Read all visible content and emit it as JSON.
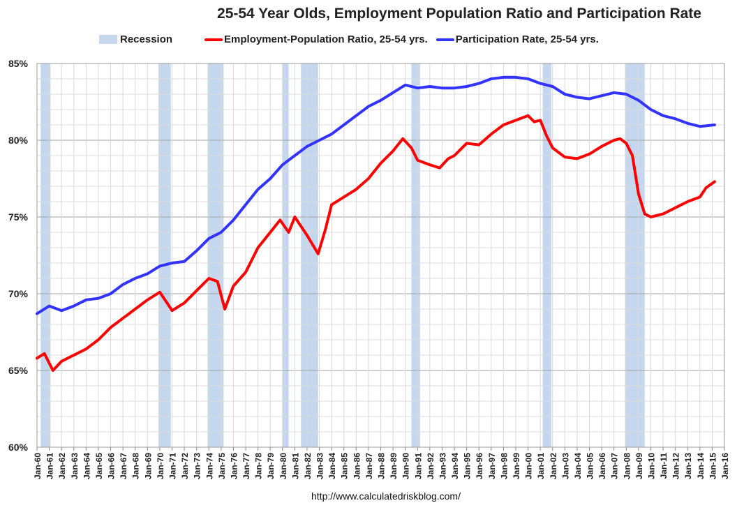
{
  "chart_data": {
    "type": "line",
    "title": "25-54 Year Olds, Employment Population Ratio and Participation Rate",
    "source": "http://www.calculatedriskblog.com/",
    "xlabel": "",
    "ylabel": "",
    "xlim": [
      1960,
      2016
    ],
    "ylim": [
      60,
      85
    ],
    "y_ticks": [
      "60%",
      "65%",
      "70%",
      "75%",
      "80%",
      "85%"
    ],
    "x_ticks": [
      "Jan-60",
      "Jan-61",
      "Jan-62",
      "Jan-63",
      "Jan-64",
      "Jan-65",
      "Jan-66",
      "Jan-67",
      "Jan-68",
      "Jan-69",
      "Jan-70",
      "Jan-71",
      "Jan-72",
      "Jan-73",
      "Jan-74",
      "Jan-75",
      "Jan-76",
      "Jan-77",
      "Jan-78",
      "Jan-79",
      "Jan-80",
      "Jan-81",
      "Jan-82",
      "Jan-83",
      "Jan-84",
      "Jan-85",
      "Jan-86",
      "Jan-87",
      "Jan-88",
      "Jan-89",
      "Jan-90",
      "Jan-91",
      "Jan-92",
      "Jan-93",
      "Jan-94",
      "Jan-95",
      "Jan-96",
      "Jan-97",
      "Jan-98",
      "Jan-99",
      "Jan-00",
      "Jan-01",
      "Jan-02",
      "Jan-03",
      "Jan-04",
      "Jan-05",
      "Jan-06",
      "Jan-07",
      "Jan-08",
      "Jan-09",
      "Jan-10",
      "Jan-11",
      "Jan-12",
      "Jan-13",
      "Jan-14",
      "Jan-15",
      "Jan-16"
    ],
    "grid": true,
    "legend_position": "top",
    "recession": {
      "name": "Recession",
      "color": "#c5d7ee",
      "periods": [
        [
          1960.3,
          1961.1
        ],
        [
          1969.9,
          1970.9
        ],
        [
          1973.9,
          1975.2
        ],
        [
          1980.0,
          1980.5
        ],
        [
          1981.5,
          1982.9
        ],
        [
          1990.5,
          1991.2
        ],
        [
          2001.2,
          2001.9
        ],
        [
          2007.9,
          2009.5
        ]
      ]
    },
    "series": [
      {
        "name": "Employment-Population Ratio, 25-54 yrs.",
        "color": "#ff0000",
        "points": [
          [
            1960,
            65.8
          ],
          [
            1960.6,
            66.1
          ],
          [
            1961.3,
            65.0
          ],
          [
            1962,
            65.6
          ],
          [
            1963,
            66.0
          ],
          [
            1964,
            66.4
          ],
          [
            1965,
            67.0
          ],
          [
            1966,
            67.8
          ],
          [
            1967,
            68.4
          ],
          [
            1968,
            69.0
          ],
          [
            1969,
            69.6
          ],
          [
            1970,
            70.1
          ],
          [
            1970.6,
            69.4
          ],
          [
            1971,
            68.9
          ],
          [
            1972,
            69.4
          ],
          [
            1973,
            70.2
          ],
          [
            1974,
            71.0
          ],
          [
            1974.7,
            70.8
          ],
          [
            1975.3,
            69.0
          ],
          [
            1976,
            70.5
          ],
          [
            1977,
            71.4
          ],
          [
            1978,
            73.0
          ],
          [
            1979,
            74.0
          ],
          [
            1979.8,
            74.8
          ],
          [
            1980.5,
            74.0
          ],
          [
            1981,
            75.0
          ],
          [
            1982,
            73.8
          ],
          [
            1982.9,
            72.6
          ],
          [
            1983.5,
            74.2
          ],
          [
            1984,
            75.8
          ],
          [
            1985,
            76.3
          ],
          [
            1986,
            76.8
          ],
          [
            1987,
            77.5
          ],
          [
            1988,
            78.5
          ],
          [
            1989,
            79.3
          ],
          [
            1989.8,
            80.1
          ],
          [
            1990.5,
            79.5
          ],
          [
            1991,
            78.7
          ],
          [
            1992,
            78.4
          ],
          [
            1992.8,
            78.2
          ],
          [
            1993.5,
            78.8
          ],
          [
            1994,
            79.0
          ],
          [
            1995,
            79.8
          ],
          [
            1996,
            79.7
          ],
          [
            1997,
            80.4
          ],
          [
            1998,
            81.0
          ],
          [
            1999,
            81.3
          ],
          [
            2000,
            81.6
          ],
          [
            2000.5,
            81.2
          ],
          [
            2001,
            81.3
          ],
          [
            2001.5,
            80.3
          ],
          [
            2002,
            79.5
          ],
          [
            2003,
            78.9
          ],
          [
            2004,
            78.8
          ],
          [
            2005,
            79.1
          ],
          [
            2006,
            79.6
          ],
          [
            2007,
            80.0
          ],
          [
            2007.5,
            80.1
          ],
          [
            2008,
            79.8
          ],
          [
            2008.5,
            79.0
          ],
          [
            2009,
            76.5
          ],
          [
            2009.5,
            75.2
          ],
          [
            2010,
            75.0
          ],
          [
            2011,
            75.2
          ],
          [
            2012,
            75.6
          ],
          [
            2013,
            76.0
          ],
          [
            2014,
            76.3
          ],
          [
            2014.5,
            76.9
          ],
          [
            2015.2,
            77.3
          ]
        ]
      },
      {
        "name": "Participation Rate, 25-54 yrs.",
        "color": "#3333ff",
        "points": [
          [
            1960,
            68.7
          ],
          [
            1961,
            69.2
          ],
          [
            1962,
            68.9
          ],
          [
            1963,
            69.2
          ],
          [
            1964,
            69.6
          ],
          [
            1965,
            69.7
          ],
          [
            1966,
            70.0
          ],
          [
            1967,
            70.6
          ],
          [
            1968,
            71.0
          ],
          [
            1969,
            71.3
          ],
          [
            1970,
            71.8
          ],
          [
            1971,
            72.0
          ],
          [
            1972,
            72.1
          ],
          [
            1973,
            72.8
          ],
          [
            1974,
            73.6
          ],
          [
            1975,
            74.0
          ],
          [
            1976,
            74.8
          ],
          [
            1977,
            75.8
          ],
          [
            1978,
            76.8
          ],
          [
            1979,
            77.5
          ],
          [
            1980,
            78.4
          ],
          [
            1981,
            79.0
          ],
          [
            1982,
            79.6
          ],
          [
            1983,
            80.0
          ],
          [
            1984,
            80.4
          ],
          [
            1985,
            81.0
          ],
          [
            1986,
            81.6
          ],
          [
            1987,
            82.2
          ],
          [
            1988,
            82.6
          ],
          [
            1989,
            83.1
          ],
          [
            1990,
            83.6
          ],
          [
            1991,
            83.4
          ],
          [
            1992,
            83.5
          ],
          [
            1993,
            83.4
          ],
          [
            1994,
            83.4
          ],
          [
            1995,
            83.5
          ],
          [
            1996,
            83.7
          ],
          [
            1997,
            84.0
          ],
          [
            1998,
            84.1
          ],
          [
            1999,
            84.1
          ],
          [
            2000,
            84.0
          ],
          [
            2001,
            83.7
          ],
          [
            2002,
            83.5
          ],
          [
            2003,
            83.0
          ],
          [
            2004,
            82.8
          ],
          [
            2005,
            82.7
          ],
          [
            2006,
            82.9
          ],
          [
            2007,
            83.1
          ],
          [
            2008,
            83.0
          ],
          [
            2009,
            82.6
          ],
          [
            2010,
            82.0
          ],
          [
            2011,
            81.6
          ],
          [
            2012,
            81.4
          ],
          [
            2013,
            81.1
          ],
          [
            2014,
            80.9
          ],
          [
            2015.2,
            81.0
          ]
        ]
      }
    ]
  }
}
